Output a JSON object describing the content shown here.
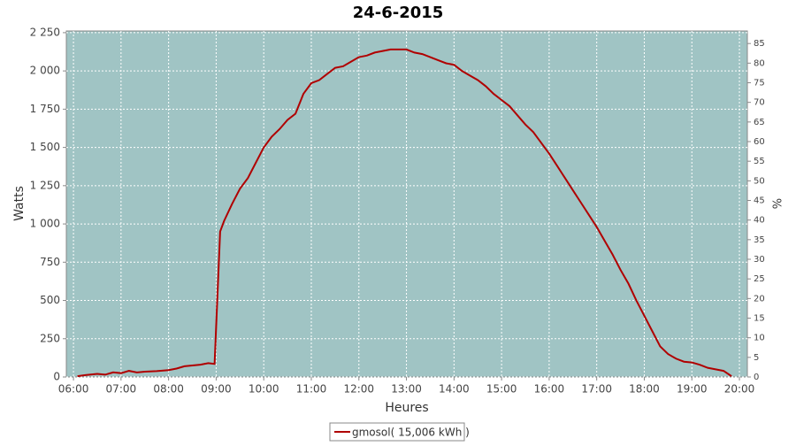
{
  "chart_data": {
    "type": "line",
    "title": "24-6-2015",
    "x_label": "Heures",
    "y_label": "Watts",
    "y2_label": "%",
    "x": [
      "06:05",
      "06:15",
      "06:30",
      "06:40",
      "06:50",
      "07:00",
      "07:10",
      "07:20",
      "07:30",
      "07:45",
      "08:00",
      "08:10",
      "08:20",
      "08:30",
      "08:40",
      "08:50",
      "08:58",
      "09:05",
      "09:10",
      "09:20",
      "09:30",
      "09:40",
      "09:50",
      "10:00",
      "10:10",
      "10:20",
      "10:30",
      "10:40",
      "10:50",
      "11:00",
      "11:10",
      "11:20",
      "11:30",
      "11:40",
      "11:50",
      "12:00",
      "12:10",
      "12:20",
      "12:30",
      "12:40",
      "12:50",
      "13:00",
      "13:10",
      "13:20",
      "13:30",
      "13:40",
      "13:50",
      "14:00",
      "14:10",
      "14:20",
      "14:30",
      "14:40",
      "14:50",
      "15:00",
      "15:10",
      "15:20",
      "15:30",
      "15:40",
      "15:50",
      "16:00",
      "16:10",
      "16:20",
      "16:30",
      "16:40",
      "16:50",
      "17:00",
      "17:10",
      "17:20",
      "17:30",
      "17:40",
      "17:50",
      "18:00",
      "18:10",
      "18:20",
      "18:30",
      "18:40",
      "18:50",
      "19:00",
      "19:10",
      "19:20",
      "19:30",
      "19:40",
      "19:50"
    ],
    "series": [
      {
        "name": "gmosol( 15,006 kWh )",
        "color": "#b00000",
        "values": [
          5,
          12,
          20,
          15,
          30,
          25,
          40,
          30,
          35,
          38,
          45,
          55,
          70,
          75,
          80,
          90,
          85,
          950,
          1020,
          1130,
          1230,
          1300,
          1400,
          1500,
          1570,
          1620,
          1680,
          1720,
          1850,
          1920,
          1940,
          1980,
          2020,
          2030,
          2060,
          2090,
          2100,
          2120,
          2130,
          2140,
          2140,
          2140,
          2120,
          2110,
          2090,
          2070,
          2050,
          2040,
          2000,
          1970,
          1940,
          1900,
          1850,
          1810,
          1770,
          1710,
          1650,
          1600,
          1530,
          1460,
          1380,
          1300,
          1220,
          1140,
          1060,
          980,
          890,
          800,
          700,
          610,
          500,
          400,
          300,
          200,
          150,
          120,
          100,
          95,
          80,
          60,
          50,
          40,
          5
        ]
      }
    ],
    "xlim": [
      "05:51",
      "20:10"
    ],
    "xticks": [
      "06:00",
      "07:00",
      "08:00",
      "09:00",
      "10:00",
      "11:00",
      "12:00",
      "13:00",
      "14:00",
      "15:00",
      "16:00",
      "17:00",
      "18:00",
      "19:00",
      "20:00"
    ],
    "ylim": [
      0,
      2261
    ],
    "yticks": [
      0,
      250,
      500,
      750,
      {
        "value": 1000,
        "label": "1 000"
      },
      {
        "value": 1250,
        "label": "1 250"
      },
      {
        "value": 1500,
        "label": "1 500"
      },
      {
        "value": 1750,
        "label": "1 750"
      },
      {
        "value": 2000,
        "label": "2 000"
      },
      {
        "value": 2250,
        "label": "2 250"
      }
    ],
    "y2lim": [
      0,
      88.2
    ],
    "y2ticks": [
      0,
      5,
      10,
      15,
      20,
      25,
      30,
      35,
      40,
      45,
      50,
      55,
      60,
      65,
      70,
      75,
      80,
      85
    ],
    "grid": true
  }
}
